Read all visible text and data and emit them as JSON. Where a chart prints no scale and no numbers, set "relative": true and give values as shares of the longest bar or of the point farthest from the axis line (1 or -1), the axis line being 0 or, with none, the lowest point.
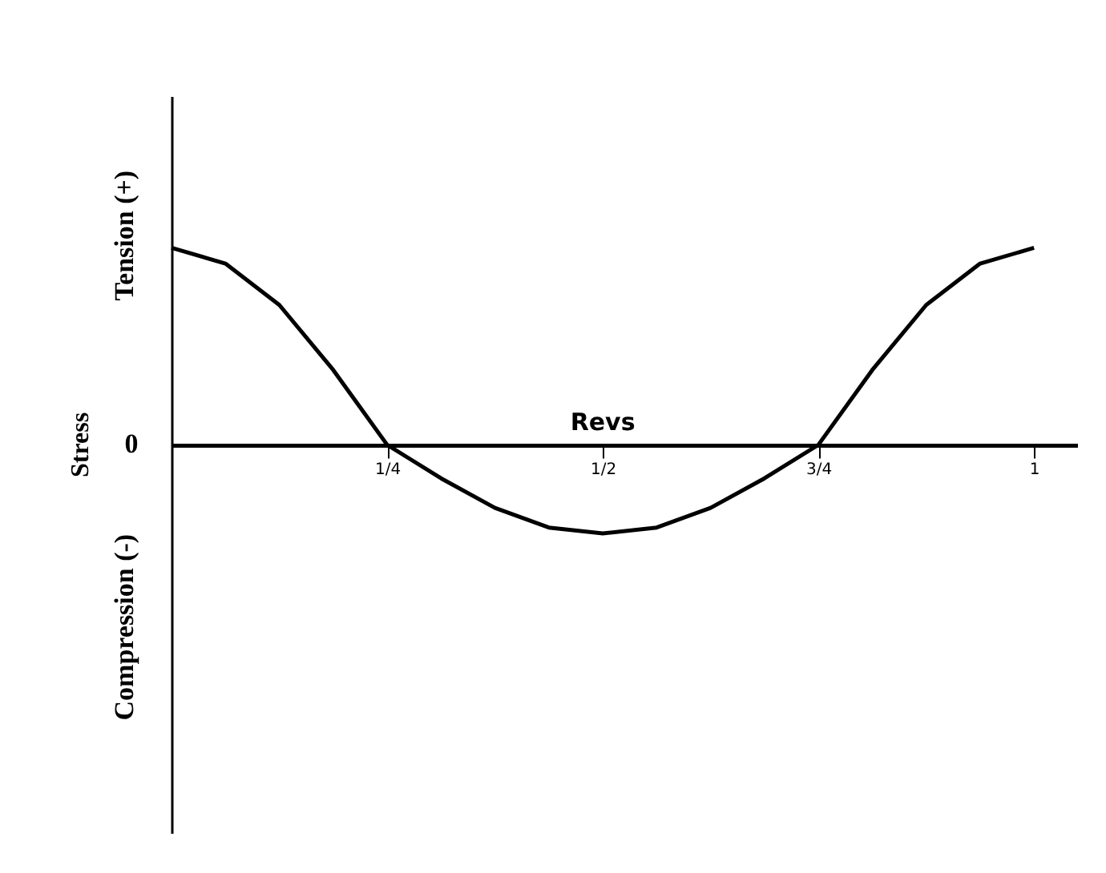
{
  "chart_data": {
    "type": "line",
    "relative": true,
    "xlabel": "Revs",
    "ylabel": "Stress",
    "annotations": [
      "Tension (+)",
      "0",
      "Compression (-)"
    ],
    "x": [
      0,
      0.0625,
      0.125,
      0.1875,
      0.25,
      0.3125,
      0.375,
      0.4375,
      0.5,
      0.5625,
      0.625,
      0.6875,
      0.75,
      0.8125,
      0.875,
      0.9375,
      1
    ],
    "series": [
      {
        "color": "#000000",
        "values": [
          1,
          0.92,
          0.71,
          0.38,
          0,
          -0.17,
          -0.32,
          -0.42,
          -0.45,
          -0.42,
          -0.32,
          -0.17,
          0,
          0.38,
          0.71,
          0.92,
          1
        ]
      }
    ],
    "xlim": [
      0,
      1.05
    ],
    "xticks": [
      {
        "value": 0.25,
        "label": "1/4"
      },
      {
        "value": 0.5,
        "label": "1/2"
      },
      {
        "value": 0.75,
        "label": "3/4"
      },
      1
    ],
    "marker": "none",
    "line_style": "solid",
    "grid": false
  }
}
